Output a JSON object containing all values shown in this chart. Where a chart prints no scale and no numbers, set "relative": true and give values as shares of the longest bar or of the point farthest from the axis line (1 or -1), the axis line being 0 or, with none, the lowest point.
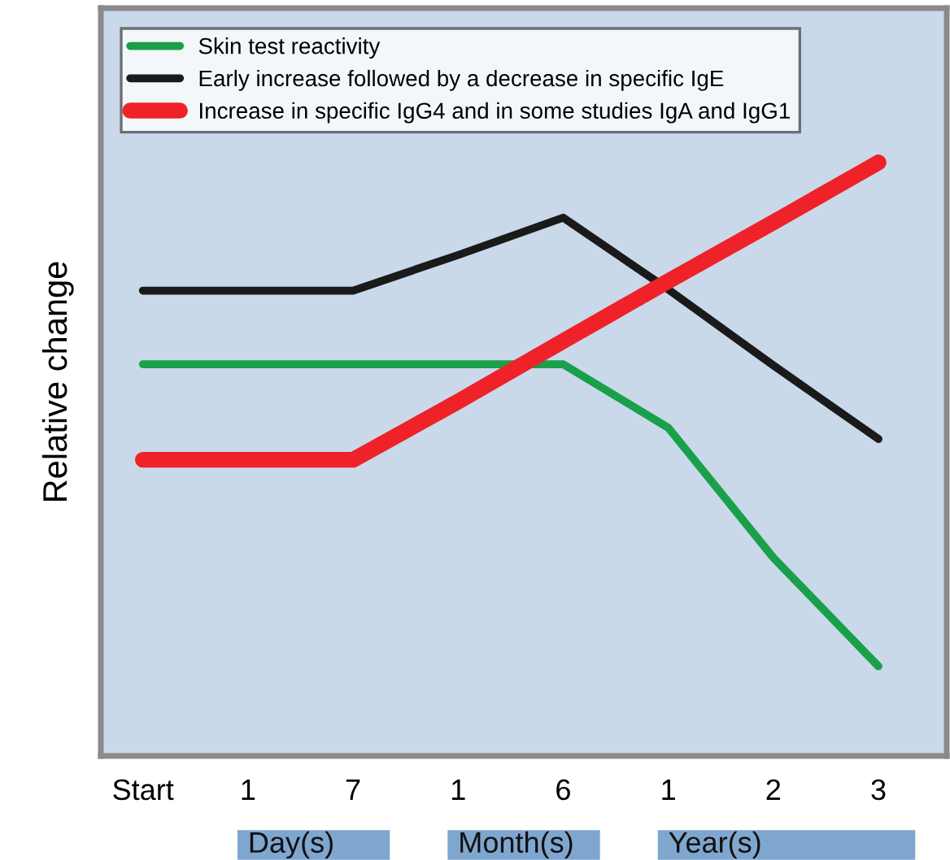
{
  "chart_data": {
    "type": "line",
    "relative": true,
    "ylabel": "Relative change",
    "categories": [
      "Start",
      "1",
      "7",
      "1",
      "6",
      "1",
      "2",
      "3"
    ],
    "series": [
      {
        "name": "Skin test reactivity",
        "color": "#1aa04a",
        "values": [
          0.66,
          0.66,
          0.66,
          0.66,
          0.66,
          0.553,
          0.334,
          0.151
        ]
      },
      {
        "name": "Early increase followed by a decrease in specific IgE",
        "color": "#1a1a1a",
        "values": [
          0.784,
          0.784,
          0.784,
          0.844,
          0.907,
          0.786,
          0.658,
          0.534
        ]
      },
      {
        "name": "Increase in specific IgG4 and in some studies IgA and IgG1",
        "color": "#ee2228",
        "values": [
          0.499,
          0.499,
          0.499,
          0.597,
          0.699,
          0.8,
          0.899,
          1.0
        ]
      }
    ],
    "annotations": [
      "Day(s)",
      "Month(s)",
      "Year(s)"
    ],
    "legend": "top left",
    "grid": false,
    "marker": "none",
    "line_style": "solid"
  }
}
